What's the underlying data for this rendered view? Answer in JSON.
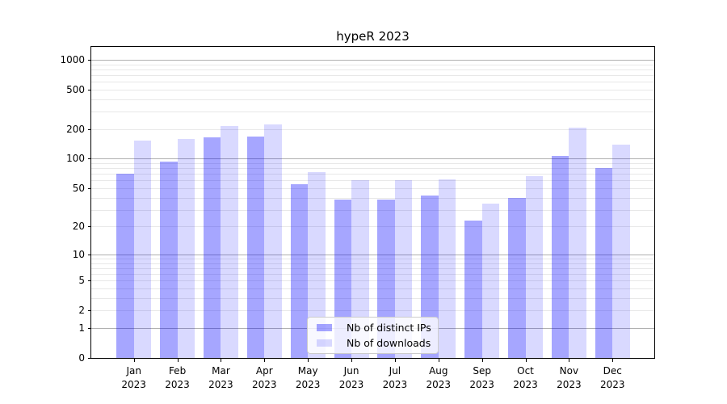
{
  "chart_data": {
    "type": "bar",
    "title": "hypeR 2023",
    "months": [
      "Jan",
      "Feb",
      "Mar",
      "Apr",
      "May",
      "Jun",
      "Jul",
      "Aug",
      "Sep",
      "Oct",
      "Nov",
      "Dec"
    ],
    "year": "2023",
    "series": [
      {
        "name": "Nb of distinct IPs",
        "color": "rgba(0,0,255,0.35)",
        "values": [
          70,
          94,
          165,
          168,
          55,
          38,
          38,
          42,
          23,
          40,
          107,
          81
        ]
      },
      {
        "name": "Nb of downloads",
        "color": "rgba(0,0,255,0.15)",
        "values": [
          152,
          160,
          214,
          222,
          73,
          60,
          60,
          62,
          35,
          67,
          205,
          140
        ]
      }
    ],
    "xlabel": "",
    "ylabel": "",
    "yscale": "log1p",
    "ylim": [
      0,
      1350
    ],
    "y_ticks": [
      0,
      1,
      2,
      5,
      10,
      20,
      50,
      100,
      200,
      500,
      1000
    ],
    "major_gridlines": [
      1,
      10,
      100,
      1000
    ],
    "minor_gridlines": [
      2,
      3,
      4,
      5,
      6,
      7,
      8,
      9,
      20,
      30,
      40,
      50,
      60,
      70,
      80,
      90,
      200,
      300,
      400,
      500,
      600,
      700,
      800,
      900
    ],
    "grid": "on",
    "legend_position": "lower center",
    "colors": {
      "bar_dark_on_white": "#a6a6ff",
      "bar_light_on_white": "#d9d9ff",
      "major_grid": "#b0b0b0",
      "minor_grid": "#e8e8e8",
      "axes": "#000000"
    }
  }
}
